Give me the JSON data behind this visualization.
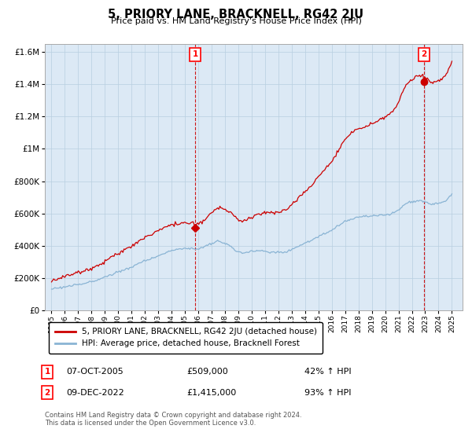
{
  "title": "5, PRIORY LANE, BRACKNELL, RG42 2JU",
  "subtitle": "Price paid vs. HM Land Registry's House Price Index (HPI)",
  "hpi_color": "#8ab4d4",
  "price_color": "#cc0000",
  "plot_bg_color": "#dce9f5",
  "background_color": "#ffffff",
  "grid_color": "#b8cfe0",
  "legend_label_price": "5, PRIORY LANE, BRACKNELL, RG42 2JU (detached house)",
  "legend_label_hpi": "HPI: Average price, detached house, Bracknell Forest",
  "annotation1_date": "07-OCT-2005",
  "annotation1_price": "£509,000",
  "annotation1_hpi": "42% ↑ HPI",
  "annotation2_date": "09-DEC-2022",
  "annotation2_price": "£1,415,000",
  "annotation2_hpi": "93% ↑ HPI",
  "footnote_line1": "Contains HM Land Registry data © Crown copyright and database right 2024.",
  "footnote_line2": "This data is licensed under the Open Government Licence v3.0.",
  "point1_x": 2005.77,
  "point1_y": 509000,
  "point2_x": 2022.92,
  "point2_y": 1415000,
  "ylim": [
    0,
    1650000
  ],
  "yticks": [
    0,
    200000,
    400000,
    600000,
    800000,
    1000000,
    1200000,
    1400000,
    1600000
  ],
  "xlim_min": 1994.5,
  "xlim_max": 2025.8
}
